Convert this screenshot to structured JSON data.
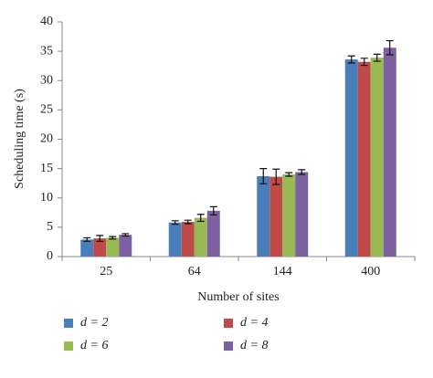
{
  "chart_data": {
    "type": "bar",
    "x_label": "Number of sites",
    "y_label": "Scheduling time (s)",
    "categories": [
      "25",
      "64",
      "144",
      "400"
    ],
    "series": [
      {
        "name": "d = 2",
        "color": "#4a7ebb",
        "values": [
          2.9,
          5.8,
          13.7,
          33.6
        ],
        "errors": [
          0.3,
          0.3,
          1.3,
          0.6
        ]
      },
      {
        "name": "d = 4",
        "color": "#be4b48",
        "values": [
          3.1,
          5.9,
          13.6,
          33.2
        ],
        "errors": [
          0.5,
          0.3,
          1.3,
          0.6
        ]
      },
      {
        "name": "d = 6",
        "color": "#98b954",
        "values": [
          3.2,
          6.6,
          14.0,
          33.9
        ],
        "errors": [
          0.2,
          0.6,
          0.3,
          0.6
        ]
      },
      {
        "name": "d = 8",
        "color": "#7d60a0",
        "values": [
          3.7,
          7.8,
          14.4,
          35.6
        ],
        "errors": [
          0.2,
          0.7,
          0.4,
          1.2
        ]
      }
    ],
    "ylim": [
      0,
      40
    ],
    "yticks": [
      0,
      5,
      10,
      15,
      20,
      25,
      30,
      35,
      40
    ],
    "grid": false
  }
}
